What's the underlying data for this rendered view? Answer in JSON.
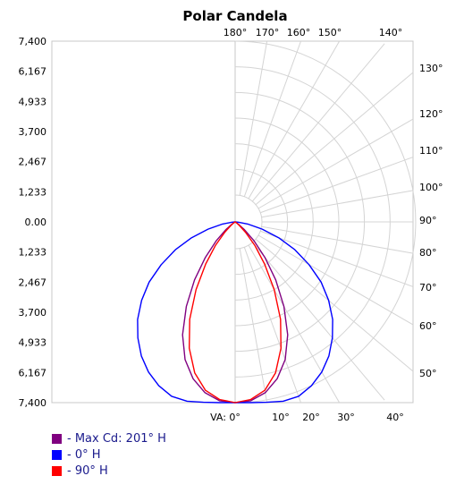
{
  "chart_data": {
    "type": "polar",
    "title": "Polar Candela",
    "y_ticks": [
      "7,400",
      "6,167",
      "4,933",
      "3,700",
      "2,467",
      "1,233",
      "0.00",
      "1,233",
      "2,467",
      "3,700",
      "4,933",
      "6,167",
      "7,400"
    ],
    "rmax": 7400,
    "top_angle_labels": [
      "180°",
      "170°",
      "160°",
      "150°",
      "140°"
    ],
    "right_angle_labels": [
      "130°",
      "120°",
      "110°",
      "100°",
      "90°",
      "80°",
      "70°",
      "60°",
      "50°"
    ],
    "bottom_angle_labels": [
      "VA: 0°",
      "10°",
      "20°",
      "30°",
      "40°"
    ],
    "grid": true,
    "legend_position": "bottom-left",
    "series": [
      {
        "name": "- Max Cd: 201° H",
        "color": "#800080",
        "angles": [
          0,
          5,
          10,
          15,
          20,
          25,
          30,
          35,
          40,
          45,
          50,
          55,
          60,
          65,
          70,
          75,
          80,
          85,
          90
        ],
        "values": [
          7400,
          7350,
          7100,
          6650,
          6000,
          5100,
          4000,
          2900,
          1900,
          1100,
          500,
          160,
          40,
          0,
          0,
          0,
          0,
          0,
          0
        ]
      },
      {
        "name": "- 0° H",
        "color": "#0000ff",
        "angles": [
          0,
          5,
          10,
          15,
          20,
          25,
          30,
          35,
          40,
          45,
          50,
          55,
          60,
          65,
          70,
          75,
          80,
          85,
          90
        ],
        "values": [
          7400,
          7430,
          7500,
          7600,
          7600,
          7400,
          7100,
          6700,
          6200,
          5650,
          5000,
          4300,
          3500,
          2700,
          1900,
          1150,
          550,
          150,
          0
        ]
      },
      {
        "name": "- 90° H",
        "color": "#ff0000",
        "angles": [
          0,
          5,
          10,
          15,
          20,
          25,
          30,
          35,
          40,
          45,
          50,
          55,
          60,
          65,
          70,
          75,
          80,
          85,
          90
        ],
        "values": [
          7400,
          7300,
          7000,
          6400,
          5500,
          4400,
          3200,
          2100,
          1250,
          600,
          220,
          60,
          10,
          0,
          0,
          0,
          0,
          0,
          0
        ]
      }
    ]
  }
}
